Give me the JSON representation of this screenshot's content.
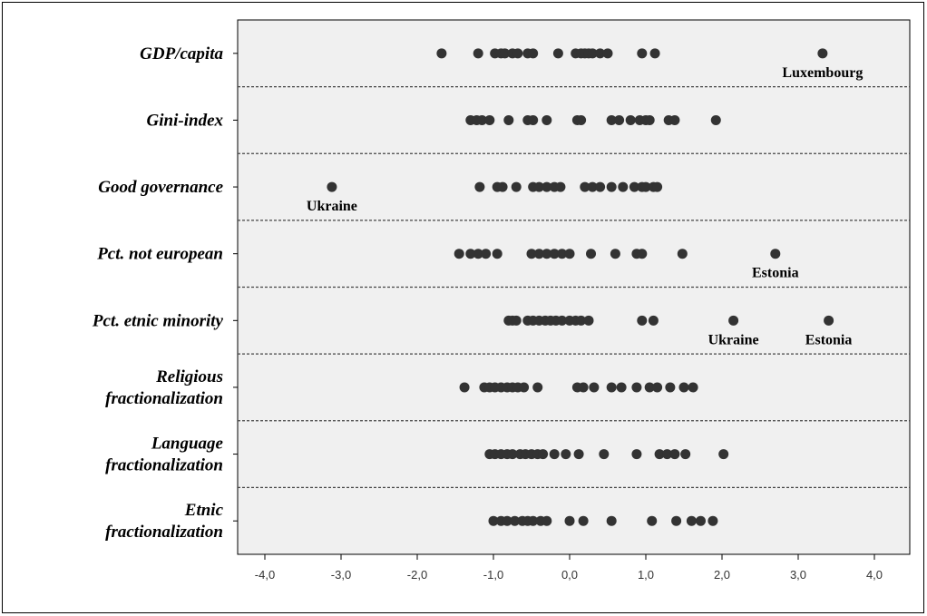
{
  "chart_data": {
    "type": "scatter",
    "title": "",
    "xlabel": "",
    "ylabel": "",
    "xlim": [
      -4.5,
      4.5
    ],
    "xticks": [
      -4.0,
      -3.0,
      -2.0,
      -1.0,
      0.0,
      1.0,
      2.0,
      3.0,
      4.0
    ],
    "xtick_labels": [
      "-4,0",
      "-3,0",
      "-2,0",
      "-1,0",
      "0,0",
      "1,0",
      "2,0",
      "3,0",
      "4,0"
    ],
    "grid": false,
    "colors": {
      "point": "#333333",
      "plot_bg": "#f0f0f0",
      "separator": "#444444"
    },
    "rows": [
      {
        "label": [
          "GDP/capita"
        ],
        "values": [
          -1.68,
          -1.2,
          -0.98,
          -0.9,
          -0.85,
          -0.75,
          -0.68,
          -0.55,
          -0.48,
          -0.15,
          0.08,
          0.15,
          0.2,
          0.25,
          0.3,
          0.4,
          0.5,
          0.95,
          1.12,
          3.32
        ],
        "annotations": [
          {
            "text": "Luxembourg",
            "x": 3.32
          }
        ]
      },
      {
        "label": [
          "Gini-index"
        ],
        "values": [
          -1.3,
          -1.22,
          -1.15,
          -1.05,
          -0.8,
          -0.55,
          -0.48,
          -0.3,
          0.1,
          0.15,
          0.55,
          0.65,
          0.8,
          0.92,
          1.0,
          1.05,
          1.3,
          1.38,
          1.92
        ],
        "annotations": []
      },
      {
        "label": [
          "Good governance"
        ],
        "values": [
          -3.12,
          -1.18,
          -0.95,
          -0.88,
          -0.7,
          -0.48,
          -0.4,
          -0.3,
          -0.2,
          -0.12,
          0.2,
          0.3,
          0.4,
          0.55,
          0.7,
          0.85,
          0.95,
          1.0,
          1.1,
          1.15
        ],
        "annotations": [
          {
            "text": "Ukraine",
            "x": -3.12
          }
        ]
      },
      {
        "label": [
          "Pct. not european"
        ],
        "values": [
          -1.45,
          -1.3,
          -1.2,
          -1.1,
          -0.95,
          -0.5,
          -0.4,
          -0.3,
          -0.2,
          -0.1,
          0.0,
          0.28,
          0.6,
          0.88,
          0.95,
          1.48,
          2.7
        ],
        "annotations": [
          {
            "text": "Estonia",
            "x": 2.7
          }
        ]
      },
      {
        "label": [
          "Pct. etnic minority"
        ],
        "values": [
          -0.8,
          -0.75,
          -0.7,
          -0.55,
          -0.48,
          -0.4,
          -0.32,
          -0.25,
          -0.18,
          -0.1,
          0.0,
          0.08,
          0.15,
          0.25,
          0.95,
          1.1,
          2.15,
          3.4
        ],
        "annotations": [
          {
            "text": "Ukraine",
            "x": 2.15
          },
          {
            "text": "Estonia",
            "x": 3.4
          }
        ]
      },
      {
        "label": [
          "Religious",
          "fractionalization"
        ],
        "values": [
          -1.38,
          -1.12,
          -1.05,
          -0.98,
          -0.9,
          -0.82,
          -0.75,
          -0.68,
          -0.6,
          -0.42,
          0.1,
          0.18,
          0.32,
          0.55,
          0.68,
          0.88,
          1.05,
          1.15,
          1.32,
          1.5,
          1.62
        ],
        "annotations": []
      },
      {
        "label": [
          "Language",
          "fractionalization"
        ],
        "values": [
          -1.05,
          -0.98,
          -0.9,
          -0.82,
          -0.75,
          -0.65,
          -0.58,
          -0.5,
          -0.42,
          -0.35,
          -0.2,
          -0.05,
          0.12,
          0.45,
          0.88,
          1.18,
          1.28,
          1.38,
          1.52,
          2.02
        ],
        "annotations": []
      },
      {
        "label": [
          "Etnic",
          "fractionalization"
        ],
        "values": [
          -1.0,
          -0.9,
          -0.82,
          -0.72,
          -0.62,
          -0.55,
          -0.48,
          -0.38,
          -0.3,
          0.0,
          0.18,
          0.55,
          1.08,
          1.4,
          1.6,
          1.72,
          1.88
        ],
        "annotations": []
      }
    ]
  }
}
